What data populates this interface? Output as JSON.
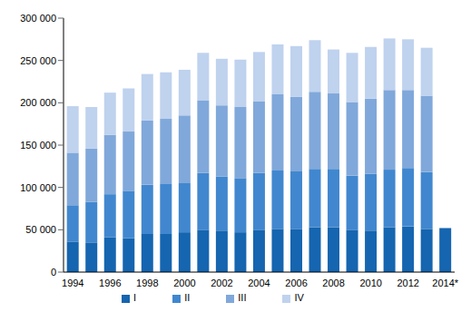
{
  "chart_data": {
    "type": "bar",
    "stacked": true,
    "grid": false,
    "legend": "bottom",
    "categories": [
      "1994",
      null,
      "1996",
      null,
      "1998",
      null,
      "2000",
      null,
      "2002",
      null,
      "2004",
      null,
      "2006",
      null,
      "2008",
      null,
      "2010",
      null,
      "2012",
      null,
      "2014*"
    ],
    "ylim": [
      0,
      300000
    ],
    "yticks": [
      0,
      {
        "value": 50000,
        "label": "50 000"
      },
      {
        "value": 100000,
        "label": "100 000"
      },
      {
        "value": 150000,
        "label": "150 000"
      },
      {
        "value": 200000,
        "label": "200 000"
      },
      {
        "value": 250000,
        "label": "250 000"
      },
      {
        "value": 300000,
        "label": "300 000"
      }
    ],
    "series": [
      {
        "name": "I",
        "color": "#1565b0",
        "values": [
          36000,
          35000,
          41000,
          40000,
          45000,
          45000,
          47000,
          50000,
          49000,
          47000,
          50000,
          51000,
          51000,
          53000,
          53000,
          50000,
          49000,
          53000,
          54000,
          51000,
          52000
        ]
      },
      {
        "name": "II",
        "color": "#4187cf",
        "values": [
          43000,
          48000,
          51000,
          56000,
          58000,
          59000,
          58000,
          67000,
          64000,
          64000,
          67000,
          69000,
          68000,
          69000,
          69000,
          64000,
          67000,
          68000,
          69000,
          67000,
          null
        ]
      },
      {
        "name": "III",
        "color": "#80a8da",
        "values": [
          62000,
          63000,
          70000,
          70000,
          76000,
          77000,
          80000,
          86000,
          84000,
          84000,
          85000,
          90000,
          88000,
          91000,
          89000,
          87000,
          89000,
          94000,
          92000,
          90000,
          null
        ]
      },
      {
        "name": "IV",
        "color": "#bfd2ee",
        "values": [
          55000,
          49000,
          50000,
          51000,
          55000,
          55000,
          54000,
          56000,
          55000,
          56000,
          58000,
          59000,
          60000,
          61000,
          52000,
          58000,
          61000,
          61000,
          60000,
          57000,
          null
        ]
      }
    ]
  }
}
